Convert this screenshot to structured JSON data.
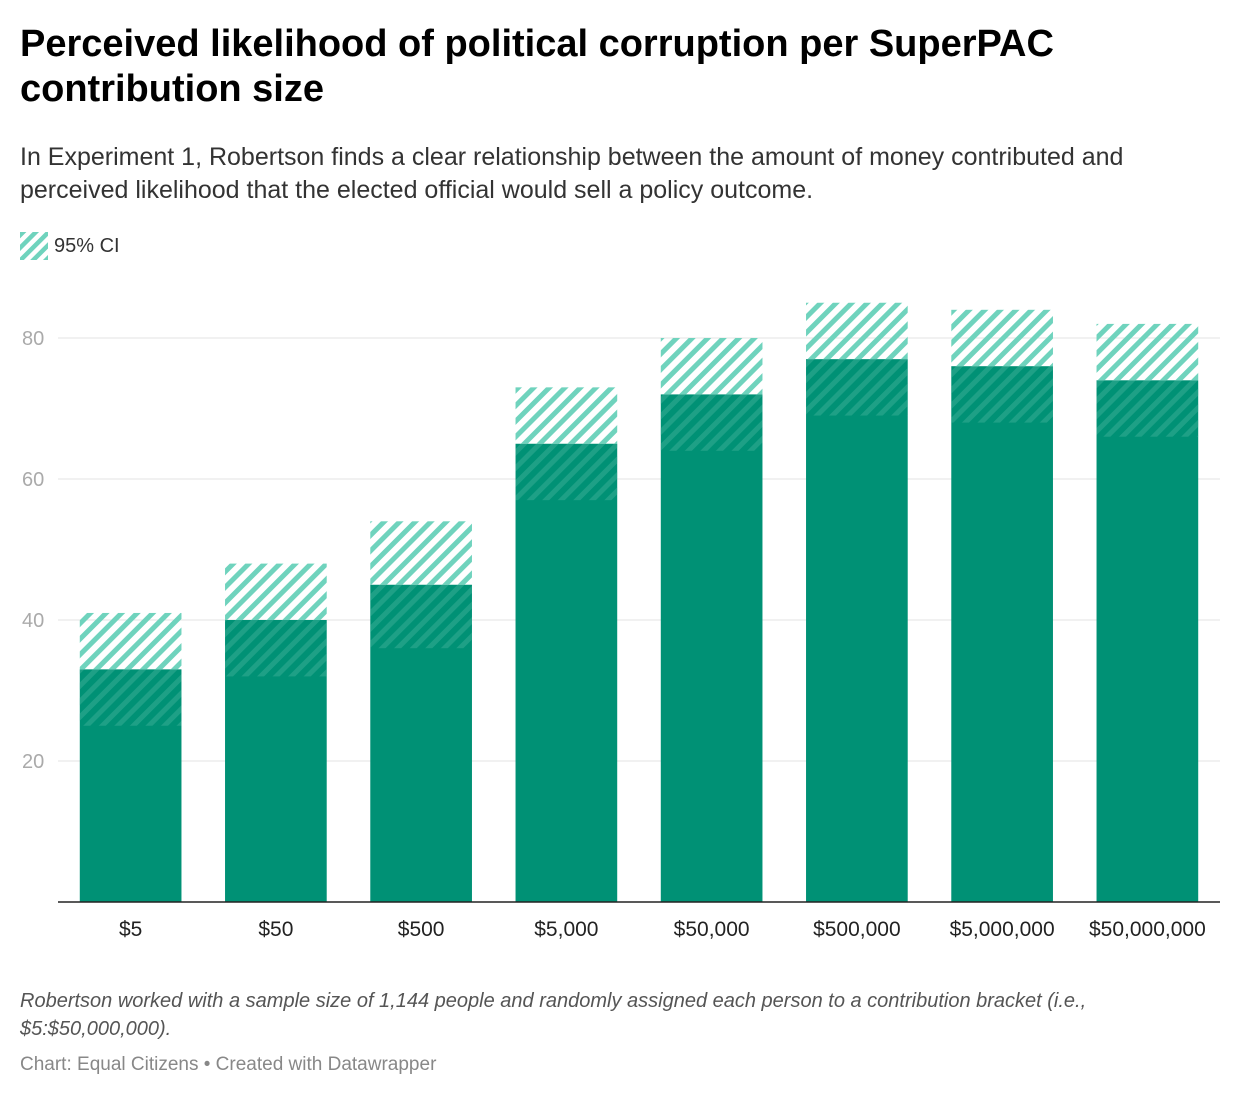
{
  "title": "Perceived likelihood of political corruption per SuperPAC contribution size",
  "subtitle": "In Experiment 1, Robertson finds a clear relationship between the amount of money contributed and perceived likelihood that the elected official would sell a policy outcome.",
  "legend": {
    "ci_label": "95% CI"
  },
  "colors": {
    "bar": "#009175",
    "ci": "#6fd3bd",
    "grid": "#e3e3e3",
    "axis": "#222222"
  },
  "chart_data": {
    "type": "bar",
    "categories": [
      "$5",
      "$50",
      "$500",
      "$5,000",
      "$50,000",
      "$500,000",
      "$5,000,000",
      "$50,000,000"
    ],
    "series": [
      {
        "name": "Perceived likelihood",
        "values": [
          33,
          40,
          45,
          65,
          72,
          77,
          76,
          74
        ]
      },
      {
        "name": "95% CI lower",
        "values": [
          25,
          32,
          36,
          57,
          64,
          69,
          68,
          66
        ]
      },
      {
        "name": "95% CI upper",
        "values": [
          41,
          48,
          54,
          73,
          80,
          85,
          84,
          82
        ]
      }
    ],
    "yticks": [
      20,
      40,
      60,
      80
    ],
    "ylim": [
      0,
      90
    ],
    "grid": true,
    "xlabel": "",
    "ylabel": ""
  },
  "notes": "Robertson worked with a sample size of 1,144 people and randomly assigned each person to a contribution bracket (i.e., $5:$50,000,000).",
  "source": "Chart: Equal Citizens • Created with Datawrapper"
}
